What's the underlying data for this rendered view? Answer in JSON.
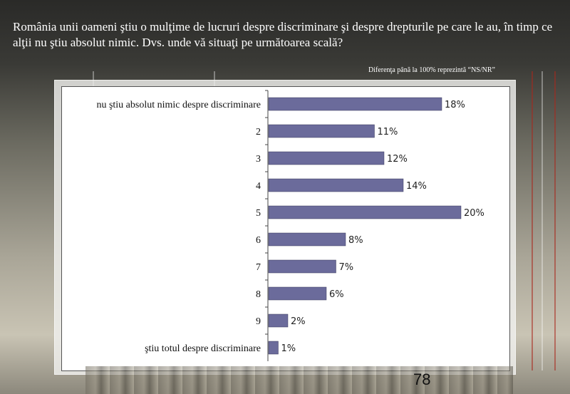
{
  "header": {
    "title": "România unii oameni ştiu o mulţime de lucruri despre discriminare şi despre drepturile pe care le au, în timp ce alţii nu ştiu absolut nimic. Dvs. unde vă situaţi pe următoarea scală?",
    "note": "Diferenţa până la 100% reprezintă  “NS/NR”"
  },
  "page_number": "78",
  "chart_data": {
    "type": "bar",
    "orientation": "horizontal",
    "categories": [
      "nu ştiu absolut nimic despre discriminare",
      "2",
      "3",
      "4",
      "5",
      "6",
      "7",
      "8",
      "9",
      "ştiu totul despre discriminare"
    ],
    "values": [
      18,
      11,
      12,
      14,
      20,
      8,
      7,
      6,
      2,
      1
    ],
    "value_labels": [
      "18%",
      "11%",
      "12%",
      "14%",
      "20%",
      "8%",
      "7%",
      "6%",
      "2%",
      "1%"
    ],
    "bar_color": "#6b6b9b",
    "xlim": [
      0,
      20
    ],
    "grid": false,
    "legend": "none"
  }
}
